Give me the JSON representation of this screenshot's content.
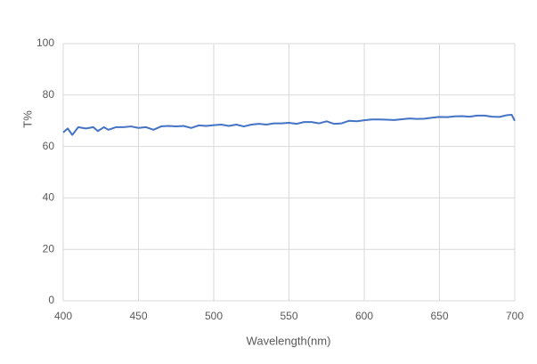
{
  "chart_data": {
    "type": "line",
    "x_label": "Wavelength(nm)",
    "y_label": "T%",
    "x": [
      400,
      403,
      406,
      410,
      415,
      420,
      423,
      427,
      430,
      435,
      440,
      445,
      450,
      455,
      460,
      465,
      470,
      475,
      480,
      485,
      490,
      495,
      500,
      505,
      510,
      515,
      520,
      525,
      530,
      535,
      540,
      545,
      550,
      555,
      560,
      565,
      570,
      575,
      580,
      585,
      590,
      595,
      600,
      605,
      610,
      615,
      620,
      625,
      630,
      635,
      640,
      645,
      650,
      655,
      660,
      665,
      670,
      675,
      680,
      685,
      690,
      695,
      698,
      700
    ],
    "series": [
      {
        "color": "#4472c4",
        "values": [
          65.5,
          67,
          64.5,
          67.5,
          67,
          67.5,
          66,
          67.5,
          66.5,
          67.5,
          67.5,
          67.8,
          67.2,
          67.5,
          66.5,
          67.8,
          68,
          67.8,
          68,
          67.2,
          68.2,
          68,
          68.3,
          68.5,
          68,
          68.5,
          67.8,
          68.5,
          68.8,
          68.5,
          69,
          69,
          69.2,
          68.8,
          69.5,
          69.5,
          69,
          69.8,
          68.8,
          69,
          70,
          69.8,
          70.2,
          70.5,
          70.5,
          70.4,
          70.3,
          70.6,
          70.9,
          70.7,
          70.8,
          71.2,
          71.5,
          71.4,
          71.7,
          71.8,
          71.6,
          72,
          72,
          71.6,
          71.5,
          72.2,
          72.3,
          70
        ]
      }
    ],
    "xlim": [
      400,
      700
    ],
    "xticks": [
      400,
      450,
      500,
      550,
      600,
      650,
      700
    ],
    "ylim": [
      0,
      100
    ],
    "yticks": [
      0,
      20,
      40,
      60,
      80,
      100
    ],
    "grid": true
  }
}
